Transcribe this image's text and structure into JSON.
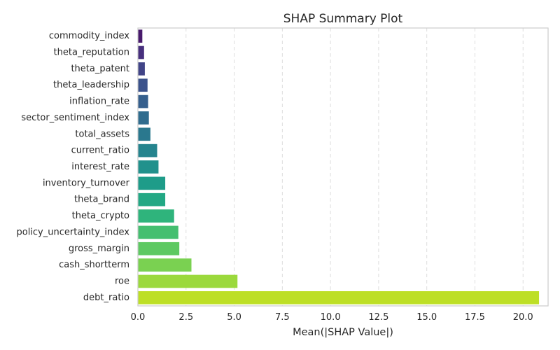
{
  "chart_data": {
    "type": "bar",
    "orientation": "horizontal",
    "title": "SHAP Summary Plot",
    "xlabel": "Mean(|SHAP Value|)",
    "ylabel": "",
    "xlim": [
      0,
      21.3
    ],
    "x_ticks": [
      0.0,
      2.5,
      5.0,
      7.5,
      10.0,
      12.5,
      15.0,
      17.5,
      20.0
    ],
    "x_tick_labels": [
      "0.0",
      "2.5",
      "5.0",
      "7.5",
      "10.0",
      "12.5",
      "15.0",
      "17.5",
      "20.0"
    ],
    "grid": "vertical-dashed",
    "legend": "none",
    "categories": [
      "commodity_index",
      "theta_reputation",
      "theta_patent",
      "theta_leadership",
      "inflation_rate",
      "sector_sentiment_index",
      "total_assets",
      "current_ratio",
      "interest_rate",
      "inventory_turnover",
      "theta_brand",
      "theta_crypto",
      "policy_uncertainty_index",
      "gross_margin",
      "cash_shortterm",
      "roe",
      "debt_ratio"
    ],
    "values": [
      0.23,
      0.32,
      0.36,
      0.5,
      0.53,
      0.57,
      0.65,
      1.0,
      1.07,
      1.42,
      1.42,
      1.88,
      2.1,
      2.15,
      2.78,
      5.17,
      20.83
    ],
    "colors": [
      "#481a6c",
      "#472f7d",
      "#414487",
      "#3b528b",
      "#355f8d",
      "#2f6c8e",
      "#2a788e",
      "#25848e",
      "#21918c",
      "#1e9c89",
      "#22a884",
      "#2fb47c",
      "#44bf70",
      "#5ec962",
      "#7ad151",
      "#9bd93c",
      "#bddf26"
    ]
  }
}
